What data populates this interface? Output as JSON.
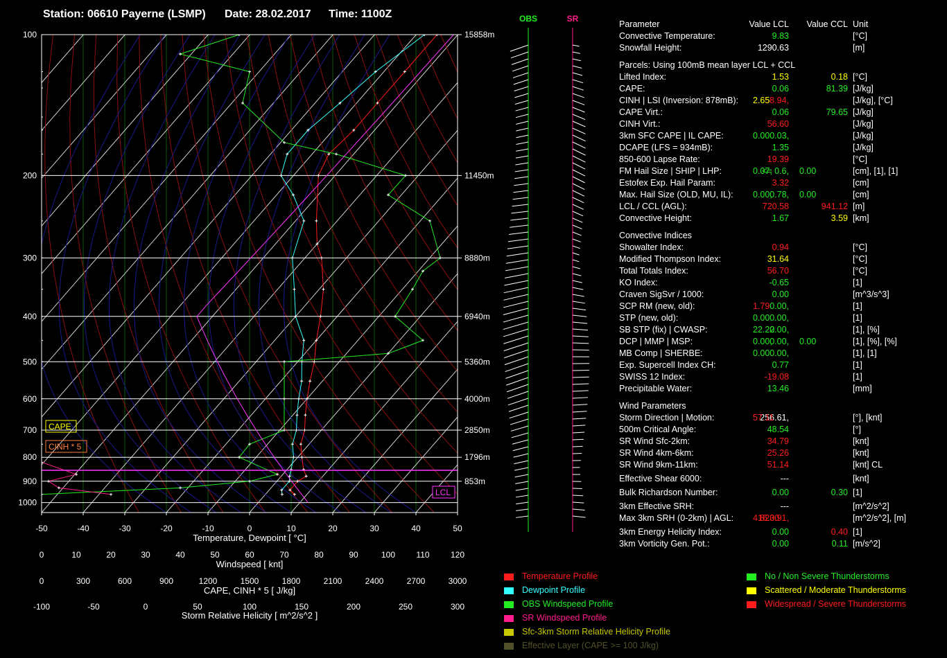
{
  "header": {
    "station": "Station: 06610 Payerne (LSMP)",
    "date": "Date: 28.02.2017",
    "time": "Time: 1100Z"
  },
  "chart_data": {
    "type": "line",
    "title": "Station: 06610 Payerne (LSMP)",
    "xlabel": "Temperature, Dewpoint [ °C]",
    "xlim": [
      -50,
      50
    ],
    "x_ticks": [
      "-50",
      "-40",
      "-30",
      "-20",
      "-10",
      "0",
      "10",
      "20",
      "30",
      "40",
      "50"
    ],
    "pressure_ticks": [
      "100",
      "200",
      "300",
      "400",
      "500",
      "600",
      "700",
      "800",
      "900",
      "1000"
    ],
    "height_labels": [
      {
        "p": 100,
        "label": "15858m"
      },
      {
        "p": 200,
        "label": "11450m"
      },
      {
        "p": 300,
        "label": "8880m"
      },
      {
        "p": 400,
        "label": "6940m"
      },
      {
        "p": 500,
        "label": "5360m"
      },
      {
        "p": 600,
        "label": "4000m"
      },
      {
        "p": 700,
        "label": "2850m"
      },
      {
        "p": 800,
        "label": "1796m"
      },
      {
        "p": 900,
        "label": "853m"
      }
    ],
    "series": [
      {
        "name": "Temperature Profile",
        "color": "#ff1c1c",
        "points": [
          [
            960,
            7
          ],
          [
            940,
            5
          ],
          [
            900,
            5
          ],
          [
            878,
            6
          ],
          [
            850,
            4
          ],
          [
            800,
            1
          ],
          [
            750,
            -2
          ],
          [
            700,
            -4
          ],
          [
            650,
            -7
          ],
          [
            600,
            -10
          ],
          [
            550,
            -13
          ],
          [
            500,
            -16
          ],
          [
            450,
            -20
          ],
          [
            400,
            -24
          ],
          [
            350,
            -29
          ],
          [
            300,
            -36
          ],
          [
            280,
            -40
          ],
          [
            250,
            -45
          ],
          [
            200,
            -54
          ],
          [
            180,
            -56
          ],
          [
            160,
            -55
          ],
          [
            140,
            -55
          ],
          [
            120,
            -55
          ],
          [
            100,
            -55
          ]
        ]
      },
      {
        "name": "Dewpoint Profile",
        "color": "#33ffff",
        "points": [
          [
            960,
            4
          ],
          [
            940,
            3
          ],
          [
            900,
            3
          ],
          [
            878,
            2
          ],
          [
            850,
            1
          ],
          [
            800,
            -1
          ],
          [
            750,
            -4
          ],
          [
            700,
            -6
          ],
          [
            650,
            -9
          ],
          [
            600,
            -12
          ],
          [
            550,
            -15
          ],
          [
            500,
            -19
          ],
          [
            450,
            -23
          ],
          [
            400,
            -30
          ],
          [
            350,
            -36
          ],
          [
            300,
            -43
          ],
          [
            250,
            -48
          ],
          [
            220,
            -56
          ],
          [
            200,
            -63
          ],
          [
            180,
            -66
          ],
          [
            160,
            -66
          ],
          [
            140,
            -64
          ],
          [
            120,
            -62
          ],
          [
            100,
            -58
          ]
        ]
      },
      {
        "name": "OBS Windspeed Profile",
        "color": "#22ee22",
        "points": [
          [
            960,
            0
          ],
          [
            930,
            40
          ],
          [
            900,
            60
          ],
          [
            870,
            68
          ],
          [
            800,
            57
          ],
          [
            750,
            60
          ],
          [
            700,
            70
          ],
          [
            600,
            70
          ],
          [
            500,
            70
          ],
          [
            480,
            100
          ],
          [
            450,
            110
          ],
          [
            400,
            102
          ],
          [
            350,
            107
          ],
          [
            320,
            110
          ],
          [
            300,
            115
          ],
          [
            250,
            112
          ],
          [
            220,
            100
          ],
          [
            200,
            105
          ],
          [
            180,
            85
          ],
          [
            170,
            70
          ],
          [
            140,
            58
          ],
          [
            120,
            60
          ],
          [
            110,
            40
          ],
          [
            100,
            57
          ]
        ]
      },
      {
        "name": "SR Windspeed Profile",
        "color": "#ff1c8c",
        "points": [
          [
            960,
            20
          ],
          [
            930,
            5
          ],
          [
            900,
            2
          ],
          [
            870,
            10
          ],
          [
            820,
            0
          ],
          [
            750,
            0
          ],
          [
            700,
            0
          ],
          [
            600,
            0
          ],
          [
            500,
            0
          ],
          [
            450,
            0
          ],
          [
            400,
            0
          ],
          [
            350,
            0
          ],
          [
            300,
            0
          ],
          [
            250,
            0
          ],
          [
            200,
            0
          ],
          [
            180,
            0
          ],
          [
            160,
            0
          ],
          [
            150,
            0
          ],
          [
            130,
            0
          ],
          [
            120,
            0
          ],
          [
            100,
            0
          ]
        ]
      }
    ],
    "windspeed_axis": {
      "label": "Windspeed [ knt]",
      "ticks": [
        "0",
        "10",
        "20",
        "30",
        "40",
        "50",
        "60",
        "70",
        "80",
        "90",
        "100",
        "110",
        "120"
      ]
    },
    "cape_axis": {
      "label": "CAPE, CINH * 5 [ J/kg]",
      "ticks": [
        "0",
        "300",
        "600",
        "900",
        "1200",
        "1500",
        "1800",
        "2100",
        "2400",
        "2700",
        "3000"
      ]
    },
    "srh_axis": {
      "label": "Storm Relative Helicity [ m^2/s^2 ]",
      "ticks": [
        "-100",
        "-50",
        "0",
        "50",
        "100",
        "150",
        "200",
        "250",
        "300"
      ]
    },
    "annotations": {
      "cape": "CAPE",
      "cinh": "CINH * 5",
      "lcl": "LCL"
    },
    "columns": {
      "obs": "OBS",
      "sr": "SR"
    }
  },
  "params": {
    "header": {
      "name": "Parameter",
      "v1": "Value LCL",
      "v2": "Value CCL",
      "unit": "Unit"
    },
    "top": [
      {
        "name": "Convective Temperature:",
        "v1": "9.83",
        "c1": "g",
        "unit": "[°C]"
      },
      {
        "name": "Snowfall Height:",
        "v1": "1290.63",
        "c1": "w",
        "unit": "[m]"
      }
    ],
    "parcels_title": "Parcels: Using 100mB mean layer LCL + CCL",
    "parcels": [
      {
        "name": "Lifted Index:",
        "v1": "1.53",
        "c1": "y",
        "v2": "0.18",
        "c2": "y",
        "unit": "[°C]"
      },
      {
        "name": "CAPE:",
        "v1": "0.06",
        "c1": "g",
        "v2": "81.39",
        "c2": "g",
        "unit": "[J/kg]"
      },
      {
        "name": "CINH | LSI (Inversion: 878mB):",
        "v1": "58.94,",
        "c1": "r",
        "v1b": "2.65",
        "c1b": "y",
        "unit": "[J/kg], [°C]"
      },
      {
        "name": "CAPE Virt.:",
        "v1": "0.06",
        "c1": "g",
        "v2": "79.65",
        "c2": "g",
        "unit": "[J/kg]"
      },
      {
        "name": "CINH Virt.:",
        "v1": "56.60",
        "c1": "r",
        "unit": "[J/kg]"
      },
      {
        "name": "3km SFC CAPE | IL CAPE:",
        "v1": "0.03,",
        "c1": "g",
        "v1b": "0.00",
        "c1b": "g",
        "unit": "[J/kg]"
      },
      {
        "name": "DCAPE (LFS = 934mB):",
        "v1": "1.35",
        "c1": "g",
        "unit": "[J/kg]"
      },
      {
        "name": "850-600 Lapse Rate:",
        "v1": "19.39",
        "c1": "r",
        "unit": "[°C]"
      },
      {
        "name": "FM Hail Size | SHIP | LHP:",
        "v1": "<= 0.6,",
        "c1": "g",
        "v1b": "0.07,",
        "c1b": "g",
        "v2b": "0.00",
        "c2b": "g",
        "unit": "[cm], [1], [1]"
      },
      {
        "name": "Estofex Exp. Hail Param:",
        "v1": "3.32",
        "c1": "r",
        "unit": "[cm]"
      },
      {
        "name": "Max. Hail Size (OLD, MU, IL):",
        "v1": "0.78,",
        "c1": "g",
        "v1b": "0.00,",
        "c1b": "g",
        "v2b": "0.00",
        "c2b": "g",
        "unit": "[cm]"
      },
      {
        "name": "LCL / CCL (AGL):",
        "v1": "720.58",
        "c1": "r",
        "v2": "941.12",
        "c2": "r",
        "unit": "[m]"
      },
      {
        "name": "Convective Height:",
        "v1": "1.67",
        "c1": "g",
        "v2": "3.59",
        "c2": "y",
        "unit": "[km]"
      }
    ],
    "convective_title": "Convective Indices",
    "convective": [
      {
        "name": "Showalter Index:",
        "v1": "0.94",
        "c1": "r",
        "unit": "[°C]"
      },
      {
        "name": "Modified Thompson Index:",
        "v1": "31.64",
        "c1": "y",
        "unit": "[°C]"
      },
      {
        "name": "Total Totals Index:",
        "v1": "56.70",
        "c1": "r",
        "unit": "[°C]"
      },
      {
        "name": "KO Index:",
        "v1": "-0.65",
        "c1": "g",
        "unit": "[1]"
      },
      {
        "name": "Craven SigSvr / 1000:",
        "v1": "0.00",
        "c1": "g",
        "unit": "[m^3/s^3]"
      },
      {
        "name": "SCP RM (new, old):",
        "v1": "0.00,",
        "c1": "g",
        "v1b": "1.79",
        "c1b": "r",
        "unit": "[1]"
      },
      {
        "name": "STP (new, old):",
        "v1": "0.00,",
        "c1": "g",
        "v1b": "0.00",
        "c1b": "g",
        "unit": "[1]"
      },
      {
        "name": "SB STP (fix) | CWASP:",
        "v1": "0.00,",
        "c1": "g",
        "v1b": "22.22",
        "c1b": "g",
        "unit": "[1], [%]"
      },
      {
        "name": "DCP | MMP | MSP:",
        "v1": "0.00,",
        "c1": "g",
        "v1b": "0.00,",
        "c1b": "g",
        "v2b": "0.00",
        "c2b": "g",
        "unit": "[1], [%], [%]"
      },
      {
        "name": "MB Comp | SHERBE:",
        "v1": "0.00,",
        "c1": "g",
        "v1b": "0.00",
        "c1b": "g",
        "unit": "[1], [1]"
      },
      {
        "name": "Exp. Supercell Index CH:",
        "v1": "0.77",
        "c1": "g",
        "unit": "[1]"
      },
      {
        "name": "SWISS 12 Index:",
        "v1": "-19.08",
        "c1": "r",
        "unit": "[1]"
      },
      {
        "name": "Precipitable Water:",
        "v1": "13.46",
        "c1": "g",
        "unit": "[mm]"
      }
    ],
    "wind_title": "Wind Parameters",
    "wind": [
      {
        "name": "Storm Direction | Motion:",
        "v1": "256.61,",
        "c1": "w",
        "v1b": "57.11",
        "c1b": "r",
        "unit": "[°], [knt]"
      },
      {
        "name": "500m Critical Angle:",
        "v1": "48.54",
        "c1": "g",
        "unit": "[°]"
      },
      {
        "name": "SR Wind Sfc-2km:",
        "v1": "34.79",
        "c1": "r",
        "unit": "[knt]"
      },
      {
        "name": "SR Wind 4km-6km:",
        "v1": "25.26",
        "c1": "r",
        "unit": "[knt]"
      },
      {
        "name": "SR Wind 9km-11km:",
        "v1": "51.14",
        "c1": "r",
        "unit": "[knt] CL"
      },
      {
        "name": "Effective Shear 6000:",
        "v1": "---",
        "c1": "w",
        "unit": "[knt]",
        "gap": true
      },
      {
        "name": "Bulk Richardson Number:",
        "v1": "0.00",
        "c1": "g",
        "v2": "0.30",
        "c2": "g",
        "unit": "[1]",
        "gap": true
      },
      {
        "name": "3km Effective SRH:",
        "v1": "---",
        "c1": "w",
        "unit": "[m^2/s^2]",
        "gap": true
      },
      {
        "name": "Max 3km SRH (0-2km) | AGL:",
        "v1": "823.91,",
        "c1": "r",
        "v1b": "416.00",
        "c1b": "r",
        "unit": "[m^2/s^2], [m]"
      },
      {
        "name": "3km Energy Helicity Index:",
        "v1": "0.00",
        "c1": "g",
        "v2": "0.40",
        "c2": "r",
        "unit": "[1]",
        "gap": true
      },
      {
        "name": "3km Vorticity Gen. Pot.:",
        "v1": "0.00",
        "c1": "g",
        "v2": "0.11",
        "c2": "g",
        "unit": "[m/s^2]"
      }
    ]
  },
  "legend": {
    "left": [
      {
        "label": "Temperature Profile",
        "color": "#ff1c1c"
      },
      {
        "label": "Dewpoint Profile",
        "color": "#33ffff"
      },
      {
        "label": "OBS Windspeed Profile",
        "color": "#22ee22"
      },
      {
        "label": "SR Windspeed Profile",
        "color": "#ff1c8c"
      },
      {
        "label": "Sfc-3km Storm Relative Helicity Profile",
        "color": "#c8c800"
      },
      {
        "label": "Effective Layer (CAPE >= 100 J/kg)",
        "color": "#505028"
      }
    ],
    "right": [
      {
        "label": "No / Non Severe Thunderstorms",
        "color": "#22ee22"
      },
      {
        "label": "Scattered / Moderate Thunderstorms",
        "color": "#ffff00"
      },
      {
        "label": "Widespread / Severe Thunderstorms",
        "color": "#ff1c1c"
      }
    ]
  }
}
